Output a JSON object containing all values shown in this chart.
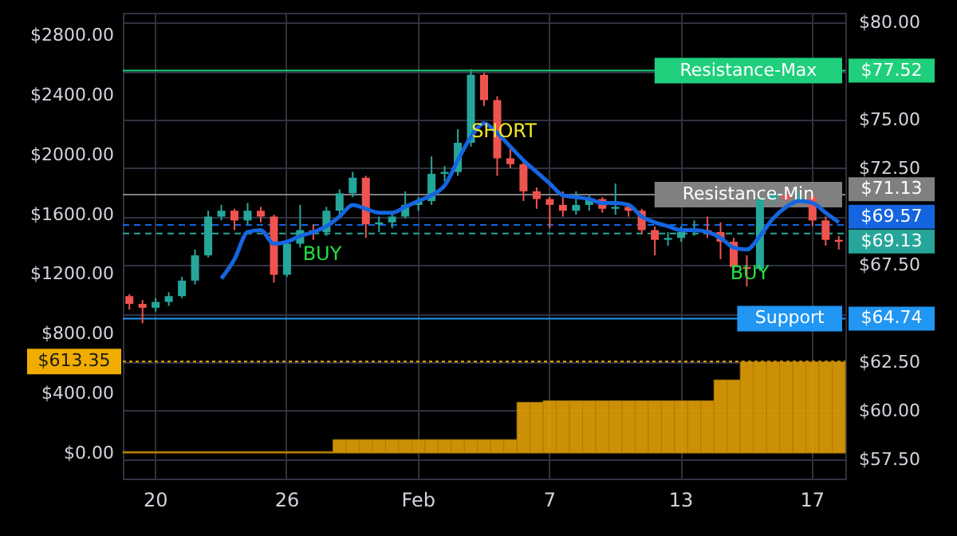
{
  "chart_data": {
    "type": "candlestick",
    "grid": true,
    "categories": [
      null,
      null,
      "20",
      null,
      null,
      null,
      null,
      null,
      null,
      null,
      null,
      null,
      "26",
      null,
      null,
      null,
      null,
      null,
      null,
      null,
      null,
      null,
      "Feb",
      null,
      null,
      null,
      null,
      null,
      null,
      null,
      null,
      null,
      "7",
      null,
      null,
      null,
      null,
      null,
      null,
      null,
      null,
      null,
      "13",
      null,
      null,
      null,
      null,
      null,
      null,
      null,
      null,
      null,
      "17",
      null,
      null
    ],
    "ylim": [
      -171,
      2950
    ],
    "yticks": [
      {
        "value": 0,
        "label": "$0.00"
      },
      {
        "value": 400,
        "label": "$400.00"
      },
      {
        "value": 800,
        "label": "$800.00"
      },
      {
        "value": 1200,
        "label": "$1200.00"
      },
      {
        "value": 1600,
        "label": "$1600.00"
      },
      {
        "value": 2000,
        "label": "$2000.00"
      },
      {
        "value": 2400,
        "label": "$2400.00"
      },
      {
        "value": 2800,
        "label": "$2800.00"
      }
    ],
    "y2lim": [
      56.5,
      80.5
    ],
    "y2ticks": [
      {
        "value": 57.5,
        "label": "$57.50"
      },
      {
        "value": 60,
        "label": "$60.00"
      },
      {
        "value": 62.5,
        "label": "$62.50"
      },
      {
        "value": 65,
        "label": null
      },
      {
        "value": 67.5,
        "label": "$67.50"
      },
      {
        "value": 70,
        "label": null
      },
      {
        "value": 72.5,
        "label": "$72.50"
      },
      {
        "value": 75,
        "label": "$75.00"
      },
      {
        "value": 77.5,
        "label": null
      },
      {
        "value": 80,
        "label": "$80.00"
      }
    ],
    "series": [
      {
        "type": "bar",
        "axis": "y",
        "color": "#e3a008",
        "values": [
          10,
          10,
          10,
          10,
          10,
          10,
          10,
          10,
          10,
          10,
          10,
          10,
          10,
          10,
          10,
          10,
          90,
          90,
          90,
          90,
          90,
          90,
          90,
          90,
          90,
          90,
          90,
          90,
          90,
          90,
          340,
          340,
          350,
          350,
          350,
          350,
          350,
          350,
          350,
          350,
          350,
          350,
          350,
          350,
          350,
          490,
          490,
          610,
          610,
          610,
          610,
          610,
          610,
          610,
          610
        ]
      },
      {
        "axis": "y2",
        "ohlc": [
          [
            65.9,
            66.0,
            65.2,
            65.5
          ],
          [
            65.5,
            65.7,
            64.5,
            65.3
          ],
          [
            65.3,
            65.8,
            65.1,
            65.6
          ],
          [
            65.6,
            66.1,
            65.4,
            65.9
          ],
          [
            65.9,
            66.9,
            65.8,
            66.7
          ],
          [
            66.7,
            68.3,
            66.5,
            68.0
          ],
          [
            68.0,
            70.3,
            67.9,
            70.0
          ],
          [
            70.0,
            70.6,
            69.8,
            70.3
          ],
          [
            70.3,
            70.4,
            69.3,
            69.8
          ],
          [
            69.8,
            70.7,
            69.6,
            70.3
          ],
          [
            70.3,
            70.5,
            69.7,
            70.0
          ],
          [
            70.0,
            70.1,
            66.6,
            67.0
          ],
          [
            67.0,
            68.8,
            66.9,
            68.6
          ],
          [
            68.6,
            70.6,
            68.4,
            69.3
          ],
          [
            69.3,
            69.6,
            68.8,
            69.2
          ],
          [
            69.2,
            70.5,
            69.0,
            70.3
          ],
          [
            70.3,
            71.4,
            70.1,
            71.2
          ],
          [
            71.2,
            72.3,
            71.0,
            72.0
          ],
          [
            72.0,
            72.1,
            68.9,
            69.6
          ],
          [
            69.6,
            70.0,
            69.2,
            69.7
          ],
          [
            69.7,
            70.2,
            69.4,
            70.0
          ],
          [
            70.0,
            71.3,
            69.9,
            70.6
          ],
          [
            70.6,
            71.0,
            70.3,
            70.8
          ],
          [
            70.8,
            73.1,
            70.6,
            72.2
          ],
          [
            72.2,
            72.6,
            71.8,
            72.3
          ],
          [
            72.3,
            74.5,
            72.1,
            73.8
          ],
          [
            73.8,
            77.6,
            73.6,
            77.3
          ],
          [
            77.3,
            77.4,
            75.7,
            76.0
          ],
          [
            76.0,
            76.2,
            72.1,
            73.0
          ],
          [
            73.0,
            73.6,
            72.5,
            72.7
          ],
          [
            72.7,
            72.8,
            70.8,
            71.3
          ],
          [
            71.3,
            71.5,
            70.4,
            70.9
          ],
          [
            70.9,
            71.0,
            69.4,
            70.6
          ],
          [
            70.6,
            71.3,
            70.0,
            70.3
          ],
          [
            70.3,
            71.3,
            70.1,
            70.6
          ],
          [
            70.6,
            71.1,
            70.3,
            70.9
          ],
          [
            70.9,
            71.0,
            70.2,
            70.4
          ],
          [
            70.4,
            71.7,
            70.1,
            70.5
          ],
          [
            70.5,
            70.7,
            70.0,
            70.3
          ],
          [
            70.3,
            70.4,
            69.1,
            69.3
          ],
          [
            69.3,
            69.5,
            68.0,
            68.8
          ],
          [
            68.8,
            69.2,
            68.5,
            68.9
          ],
          [
            68.9,
            69.5,
            68.7,
            69.2
          ],
          [
            69.2,
            69.8,
            69.0,
            69.3
          ],
          [
            69.3,
            70.0,
            68.9,
            69.2
          ],
          [
            69.2,
            69.7,
            67.8,
            68.7
          ],
          [
            68.7,
            68.9,
            67.2,
            67.4
          ],
          [
            67.4,
            68.0,
            66.4,
            67.3
          ],
          [
            67.3,
            71.0,
            67.2,
            70.9
          ],
          [
            70.9,
            71.3,
            70.6,
            71.1
          ],
          [
            71.1,
            71.4,
            70.8,
            70.9
          ],
          [
            70.9,
            71.3,
            70.7,
            71.0
          ],
          [
            71.0,
            71.2,
            69.5,
            69.8
          ],
          [
            69.8,
            70.0,
            68.5,
            68.8
          ],
          [
            68.8,
            69.0,
            68.3,
            68.7
          ]
        ],
        "colors": [
          "#ef5350",
          "#ef5350",
          "#26a69a",
          "#26a69a",
          "#26a69a",
          "#26a69a",
          "#26a69a",
          "#26a69a",
          "#ef5350",
          "#26a69a",
          "#ef5350",
          "#ef5350",
          "#26a69a",
          "#26a69a",
          "#ef5350",
          "#26a69a",
          "#26a69a",
          "#26a69a",
          "#ef5350",
          "#26a69a",
          "#26a69a",
          "#26a69a",
          "#26a69a",
          "#26a69a",
          "#26a69a",
          "#26a69a",
          "#26a69a",
          "#ef5350",
          "#ef5350",
          "#ef5350",
          "#ef5350",
          "#ef5350",
          "#ef5350",
          "#ef5350",
          "#26a69a",
          "#26a69a",
          "#ef5350",
          "#26a69a",
          "#ef5350",
          "#ef5350",
          "#ef5350",
          "#26a69a",
          "#26a69a",
          "#26a69a",
          "#ef5350",
          "#ef5350",
          "#ef5350",
          "#ef5350",
          "#26a69a",
          "#26a69a",
          "#ef5350",
          "#26a69a",
          "#ef5350",
          "#ef5350",
          "#ef5350"
        ]
      },
      {
        "type": "line",
        "axis": "y2",
        "color": "#1565e0",
        "values": [
          null,
          null,
          null,
          null,
          null,
          null,
          null,
          66.8,
          67.8,
          69.2,
          69.3,
          68.6,
          68.7,
          69.0,
          69.2,
          69.5,
          70.0,
          70.6,
          70.4,
          70.2,
          70.2,
          70.5,
          70.8,
          71.1,
          71.6,
          72.9,
          74.1,
          74.8,
          74.3,
          73.6,
          72.9,
          72.3,
          71.7,
          71.1,
          71.0,
          70.9,
          70.7,
          70.7,
          70.6,
          70.0,
          69.7,
          69.5,
          69.3,
          69.3,
          69.2,
          68.9,
          68.4,
          68.3,
          69.0,
          69.9,
          70.5,
          70.8,
          70.7,
          70.2,
          69.7
        ]
      }
    ],
    "ref_lines": [
      {
        "axis": "y2",
        "value": 77.52,
        "label": "Resistance-Max",
        "color": "#1fcf7c",
        "line_style": "solid"
      },
      {
        "axis": "y2",
        "value": 71.13,
        "label": "Resistance-Min",
        "color": "#808080",
        "line_style": "solid"
      },
      {
        "axis": "y2",
        "value": 69.57,
        "color": "#1565e0",
        "line_style": "dashed"
      },
      {
        "axis": "y2",
        "value": 69.13,
        "color": "#26a69a",
        "line_style": "dashed"
      },
      {
        "axis": "y2",
        "value": 64.74,
        "label": "Support",
        "color": "#2196f3",
        "line_style": "solid"
      },
      {
        "axis": "y",
        "value": 613.35,
        "label": "$613.35",
        "color": "#f0ad00",
        "line_style": "dotted"
      }
    ],
    "annotations": [
      "$77.52",
      "$71.13",
      "$69.57",
      "$69.13",
      "$64.74",
      "BUY",
      "SHORT",
      "BUY"
    ]
  }
}
